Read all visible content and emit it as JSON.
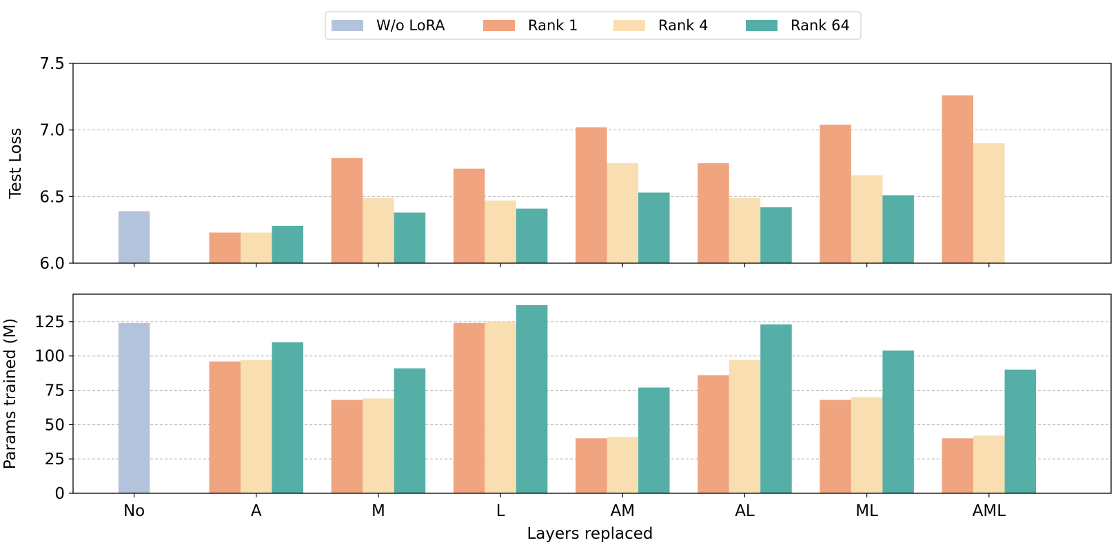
{
  "legend": {
    "placement": "top-center",
    "entries": [
      {
        "label": "W/o LoRA",
        "color": "#b3c3dc"
      },
      {
        "label": "Rank 1",
        "color": "#f0a47f"
      },
      {
        "label": "Rank 4",
        "color": "#f8deb0"
      },
      {
        "label": "Rank 64",
        "color": "#55afa6"
      }
    ]
  },
  "chart_data": [
    {
      "type": "bar",
      "ylabel": "Test Loss",
      "xlabel": "",
      "ylim": [
        6.0,
        7.5
      ],
      "yticks": [
        "6.0",
        "6.5",
        "7.0",
        "7.5"
      ],
      "ytick_values": [
        6.0,
        6.5,
        7.0,
        7.5
      ],
      "grid": true,
      "categories": [
        "No",
        "A",
        "M",
        "L",
        "AM",
        "AL",
        "ML",
        "AML"
      ],
      "series": [
        {
          "name": "W/o LoRA",
          "color": "#b3c3dc",
          "values": [
            6.39,
            null,
            null,
            null,
            null,
            null,
            null,
            null
          ]
        },
        {
          "name": "Rank 1",
          "color": "#f0a47f",
          "values": [
            null,
            6.23,
            6.79,
            6.71,
            7.02,
            6.75,
            7.04,
            7.26
          ]
        },
        {
          "name": "Rank 4",
          "color": "#f8deb0",
          "values": [
            null,
            6.23,
            6.49,
            6.47,
            6.75,
            6.49,
            6.66,
            6.9
          ]
        },
        {
          "name": "Rank 64",
          "color": "#55afa6",
          "values": [
            null,
            6.28,
            6.38,
            6.41,
            6.53,
            6.42,
            6.51,
            null
          ]
        }
      ]
    },
    {
      "type": "bar",
      "ylabel": "Params trained (M)",
      "xlabel": "Layers replaced",
      "ylim": [
        0,
        145
      ],
      "yticks": [
        "0",
        "25",
        "50",
        "75",
        "100",
        "125"
      ],
      "ytick_values": [
        0,
        25,
        50,
        75,
        100,
        125
      ],
      "grid": true,
      "categories": [
        "No",
        "A",
        "M",
        "L",
        "AM",
        "AL",
        "ML",
        "AML"
      ],
      "series": [
        {
          "name": "W/o LoRA",
          "color": "#b3c3dc",
          "values": [
            124,
            null,
            null,
            null,
            null,
            null,
            null,
            null
          ]
        },
        {
          "name": "Rank 1",
          "color": "#f0a47f",
          "values": [
            null,
            96,
            68,
            124,
            40,
            86,
            68,
            40
          ]
        },
        {
          "name": "Rank 4",
          "color": "#f8deb0",
          "values": [
            null,
            97,
            69,
            125,
            41,
            97,
            70,
            42
          ]
        },
        {
          "name": "Rank 64",
          "color": "#55afa6",
          "values": [
            null,
            110,
            91,
            137,
            77,
            123,
            104,
            90
          ]
        }
      ]
    }
  ]
}
